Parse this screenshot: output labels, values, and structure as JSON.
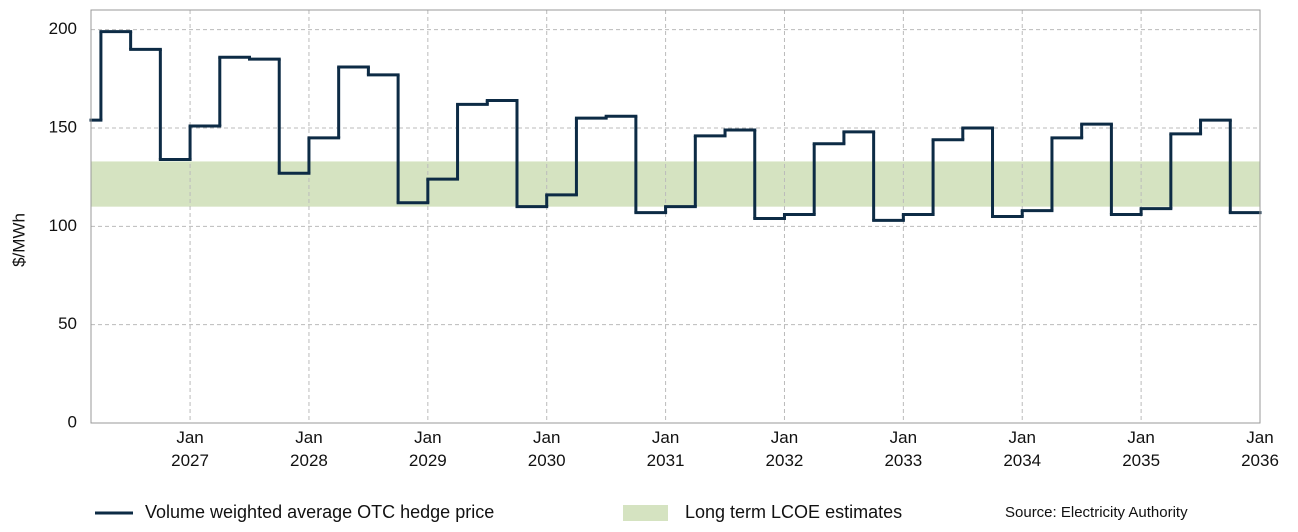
{
  "chart_data": {
    "type": "step",
    "y_label": "$/MWh",
    "source": "Source: Electricity Authority",
    "xlim": [
      "2026-03",
      "2036-01"
    ],
    "xticks": [
      {
        "value": "2027-01",
        "label": "Jan 2027"
      },
      {
        "value": "2028-01",
        "label": "Jan 2028"
      },
      {
        "value": "2029-01",
        "label": "Jan 2029"
      },
      {
        "value": "2030-01",
        "label": "Jan 2030"
      },
      {
        "value": "2031-01",
        "label": "Jan 2031"
      },
      {
        "value": "2032-01",
        "label": "Jan 2032"
      },
      {
        "value": "2033-01",
        "label": "Jan 2033"
      },
      {
        "value": "2034-01",
        "label": "Jan 2034"
      },
      {
        "value": "2035-01",
        "label": "Jan 2035"
      },
      {
        "value": "2036-01",
        "label": "Jan 2036"
      }
    ],
    "ylim": [
      0,
      210
    ],
    "yticks": [
      0,
      50,
      100,
      150,
      200
    ],
    "grid": true,
    "band": {
      "name": "Long term LCOE estimates",
      "color": "#d5e3c1",
      "range": [
        110,
        133
      ]
    },
    "series": [
      {
        "name": "Volume weighted average OTC hedge price",
        "color": "#0d2b45",
        "x": [
          "2026-03",
          "2026-04",
          "2026-07",
          "2026-10",
          "2027-01",
          "2027-04",
          "2027-07",
          "2027-10",
          "2028-01",
          "2028-04",
          "2028-07",
          "2028-10",
          "2029-01",
          "2029-04",
          "2029-07",
          "2029-10",
          "2030-01",
          "2030-04",
          "2030-07",
          "2030-10",
          "2031-01",
          "2031-04",
          "2031-07",
          "2031-10",
          "2032-01",
          "2032-04",
          "2032-07",
          "2032-10",
          "2033-01",
          "2033-04",
          "2033-07",
          "2033-10",
          "2034-01",
          "2034-04",
          "2034-07",
          "2034-10",
          "2035-01",
          "2035-04",
          "2035-07",
          "2035-10"
        ],
        "values": [
          154,
          199,
          190,
          134,
          151,
          186,
          185,
          127,
          145,
          181,
          177,
          112,
          124,
          162,
          164,
          110,
          116,
          155,
          156,
          107,
          110,
          146,
          149,
          104,
          106,
          142,
          148,
          103,
          106,
          144,
          150,
          105,
          108,
          145,
          152,
          106,
          109,
          147,
          154,
          107
        ]
      }
    ]
  }
}
